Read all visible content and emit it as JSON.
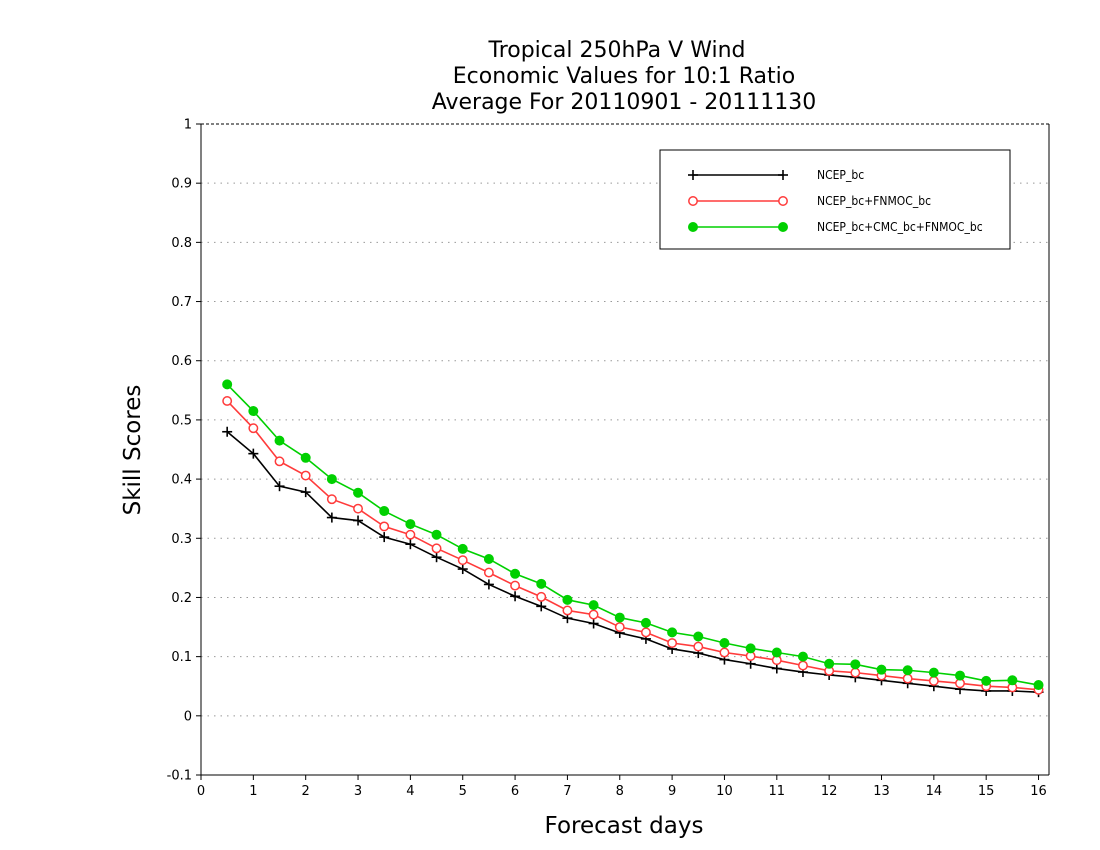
{
  "chart_data": {
    "type": "line",
    "title_lines": [
      "Tropical 250hPa V Wind",
      "Economic Values for 10:1 Ratio",
      "Average For 20110901 - 20111130"
    ],
    "xlabel": "Forecast days",
    "ylabel": "Skill Scores",
    "xlim": [
      0,
      16.2
    ],
    "ylim": [
      -0.1,
      1
    ],
    "xticks": [
      0,
      1,
      2,
      3,
      4,
      5,
      6,
      7,
      8,
      9,
      10,
      11,
      12,
      13,
      14,
      15,
      16
    ],
    "xtick_labels": [
      "0",
      "1",
      "2",
      "3",
      "4",
      "5",
      "6",
      "7",
      "8",
      "9",
      "10",
      "11",
      "12",
      "13",
      "14",
      "15",
      "16"
    ],
    "yticks": [
      -0.1,
      0,
      0.1,
      0.2,
      0.3,
      0.4,
      0.5,
      0.6,
      0.7,
      0.8,
      0.9,
      1
    ],
    "ytick_labels": [
      "-0.1",
      "0",
      "0.1",
      "0.2",
      "0.3",
      "0.4",
      "0.5",
      "0.6",
      "0.7",
      "0.8",
      "0.9",
      "1"
    ],
    "grid": true,
    "legend_position": "top-right",
    "x": [
      0.5,
      1,
      1.5,
      2,
      2.5,
      3,
      3.5,
      4,
      4.5,
      5,
      5.5,
      6,
      6.5,
      7,
      7.5,
      8,
      8.5,
      9,
      9.5,
      10,
      10.5,
      11,
      11.5,
      12,
      12.5,
      13,
      13.5,
      14,
      14.5,
      15,
      15.5,
      16
    ],
    "series": [
      {
        "name": "NCEP_bc",
        "color": "#000000",
        "marker": "plus",
        "values": [
          0.48,
          0.443,
          0.388,
          0.378,
          0.335,
          0.33,
          0.302,
          0.29,
          0.268,
          0.248,
          0.222,
          0.202,
          0.185,
          0.165,
          0.156,
          0.14,
          0.13,
          0.113,
          0.106,
          0.095,
          0.088,
          0.08,
          0.074,
          0.069,
          0.065,
          0.06,
          0.055,
          0.05,
          0.045,
          0.042,
          0.042,
          0.04
        ]
      },
      {
        "name": "NCEP_bc+FNMOC_bc",
        "color": "#ff3b3b",
        "marker": "open-circle",
        "values": [
          0.532,
          0.486,
          0.43,
          0.406,
          0.366,
          0.35,
          0.32,
          0.306,
          0.283,
          0.263,
          0.242,
          0.22,
          0.201,
          0.178,
          0.171,
          0.15,
          0.141,
          0.123,
          0.117,
          0.107,
          0.101,
          0.094,
          0.085,
          0.076,
          0.073,
          0.068,
          0.063,
          0.059,
          0.055,
          0.05,
          0.048,
          0.044
        ]
      },
      {
        "name": "NCEP_bc+CMC_bc+FNMOC_bc",
        "color": "#00d000",
        "marker": "filled-circle",
        "values": [
          0.56,
          0.515,
          0.465,
          0.436,
          0.4,
          0.377,
          0.346,
          0.324,
          0.306,
          0.282,
          0.265,
          0.24,
          0.223,
          0.196,
          0.187,
          0.166,
          0.157,
          0.141,
          0.134,
          0.123,
          0.114,
          0.107,
          0.1,
          0.088,
          0.087,
          0.078,
          0.077,
          0.073,
          0.068,
          0.059,
          0.06,
          0.052
        ]
      }
    ]
  }
}
